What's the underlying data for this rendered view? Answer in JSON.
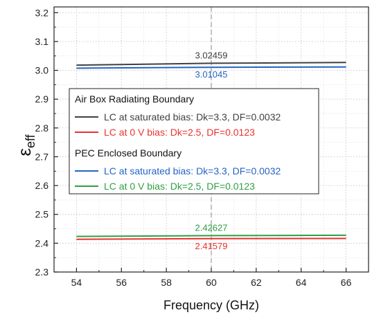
{
  "chart_data": {
    "type": "line",
    "xlabel": "Frequency (GHz)",
    "ylabel_main": "ε",
    "ylabel_sub": "eff",
    "xlim": [
      53,
      67
    ],
    "ylim": [
      2.3,
      3.22
    ],
    "xticks": [
      54,
      56,
      58,
      60,
      62,
      64,
      66
    ],
    "yticks": [
      2.3,
      2.4,
      2.5,
      2.6,
      2.7,
      2.8,
      2.9,
      3.0,
      3.1,
      3.2
    ],
    "xtick_labels": [
      "54",
      "56",
      "58",
      "60",
      "62",
      "64",
      "66"
    ],
    "ytick_labels": [
      "2.3",
      "2.4",
      "2.5",
      "2.6",
      "2.7",
      "2.8",
      "2.9",
      "3.0",
      "3.1",
      "3.2"
    ],
    "grid": true,
    "marker_line_x": 60,
    "legend": {
      "placement": "center-left",
      "groups": [
        {
          "title": "Air Box Radiating Boundary",
          "entries": [
            {
              "label": "LC at saturated bias: Dk=3.3, DF=0.0032",
              "color": "#404040"
            },
            {
              "label": "LC at 0 V bias: Dk=2.5, DF=0.0123",
              "color": "#e8322e"
            }
          ]
        },
        {
          "title": "PEC Enclosed Boundary",
          "entries": [
            {
              "label": "LC at saturated bias: Dk=3.3, DF=0.0032",
              "color": "#2463c6"
            },
            {
              "label": "LC at 0 V bias: Dk=2.5, DF=0.0123",
              "color": "#2e9e45"
            }
          ]
        }
      ]
    },
    "series": [
      {
        "color": "#404040",
        "x": [
          54,
          60,
          66
        ],
        "y": [
          3.018,
          3.02459,
          3.027
        ]
      },
      {
        "color": "#e8322e",
        "x": [
          54,
          60,
          66
        ],
        "y": [
          2.4135,
          2.41579,
          2.4165
        ]
      },
      {
        "color": "#2463c6",
        "x": [
          54,
          60,
          66
        ],
        "y": [
          3.0075,
          3.01045,
          3.0115
        ]
      },
      {
        "color": "#2e9e45",
        "x": [
          54,
          60,
          66
        ],
        "y": [
          2.4235,
          2.42627,
          2.4275
        ]
      }
    ],
    "annotations": [
      {
        "text": "3.02459",
        "x": 60,
        "y": 3.02459,
        "color": "#404040",
        "pos": "above"
      },
      {
        "text": "3.01045",
        "x": 60,
        "y": 3.01045,
        "color": "#2463c6",
        "pos": "below"
      },
      {
        "text": "2.42627",
        "x": 60,
        "y": 2.42627,
        "color": "#2e9e45",
        "pos": "above"
      },
      {
        "text": "2.41579",
        "x": 60,
        "y": 2.41579,
        "color": "#e8322e",
        "pos": "below"
      }
    ]
  }
}
